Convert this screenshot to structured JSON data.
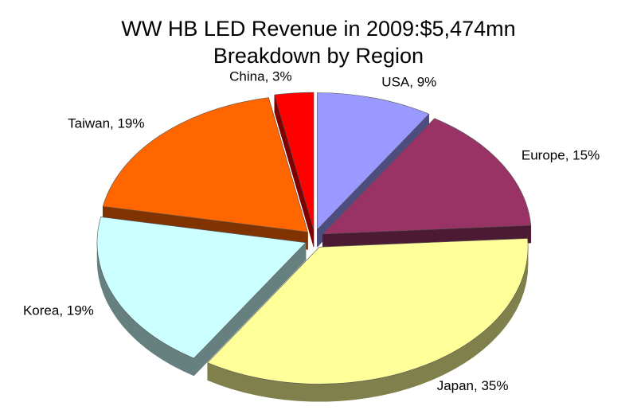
{
  "chart_data": {
    "type": "pie",
    "title": "WW HB LED Revenue in 2009:$5,474mn",
    "subtitle": "Breakdown by Region",
    "values": [
      9,
      15,
      35,
      19,
      19,
      3
    ],
    "value_labels": [
      "USA, 9%",
      "Europe, 15%",
      "Japan, 35%",
      "Korea, 19%",
      "Taiwan, 19%",
      "China, 3%"
    ],
    "colors": [
      "#9999ff",
      "#993366",
      "#ffff99",
      "#ccffff",
      "#ff6600",
      "#ff0000"
    ]
  }
}
